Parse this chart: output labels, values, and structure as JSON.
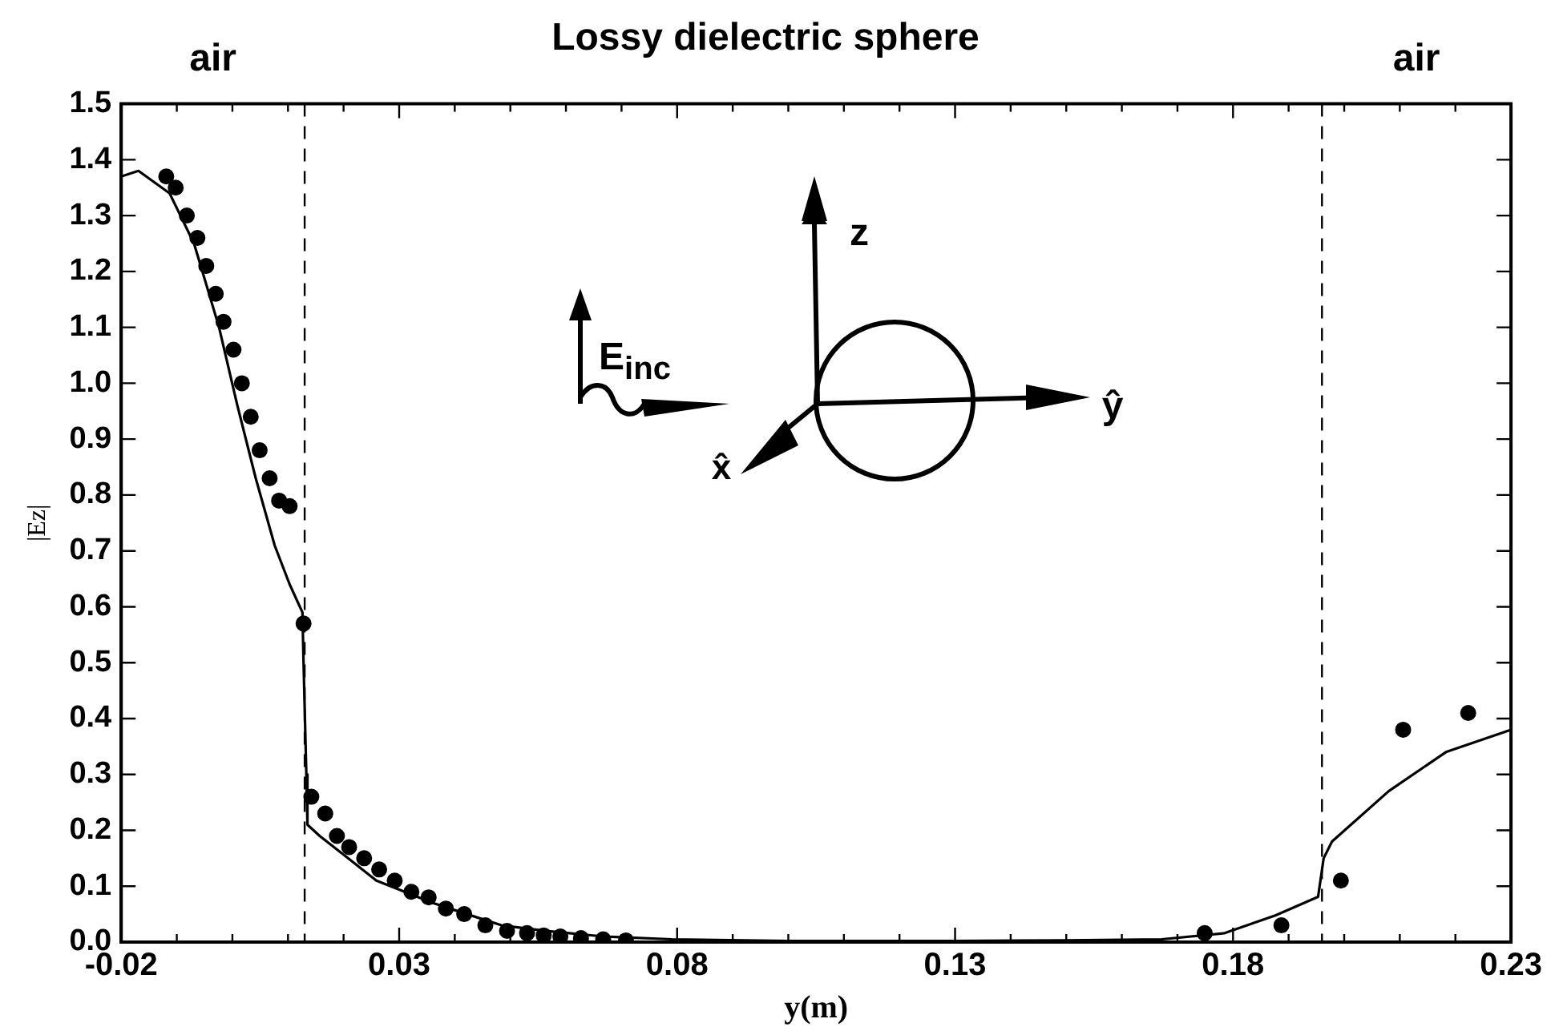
{
  "chart_data": {
    "type": "line",
    "title": "Lossy dielectric sphere",
    "xlabel": "y(m)",
    "ylabel": "|Ez|",
    "annotations": [
      "air",
      "air",
      "E$_{inc}$",
      "z",
      "ŷ",
      "x̂"
    ],
    "xlim": [
      -0.02,
      0.23
    ],
    "xticks": [
      -0.02,
      {
        "value": -0.01,
        "label": null
      },
      {
        "value": 0,
        "label": null
      },
      {
        "value": 0.01,
        "label": null
      },
      {
        "value": 0.02,
        "label": null
      },
      0.03,
      {
        "value": 0.04,
        "label": null
      },
      {
        "value": 0.05,
        "label": null
      },
      {
        "value": 0.06,
        "label": null
      },
      {
        "value": 0.07,
        "label": null
      },
      0.08,
      {
        "value": 0.09,
        "label": null
      },
      {
        "value": 0.1,
        "label": null
      },
      {
        "value": 0.11,
        "label": null
      },
      {
        "value": 0.12,
        "label": null
      },
      0.13,
      {
        "value": 0.14,
        "label": null
      },
      {
        "value": 0.15,
        "label": null
      },
      {
        "value": 0.16,
        "label": null
      },
      {
        "value": 0.17,
        "label": null
      },
      0.18,
      {
        "value": 0.19,
        "label": null
      },
      {
        "value": 0.2,
        "label": null
      },
      {
        "value": 0.21,
        "label": null
      },
      {
        "value": 0.22,
        "label": null
      },
      0.23
    ],
    "ylim": [
      0,
      1.5
    ],
    "yticks": [
      {
        "value": 0,
        "label": "0.0"
      },
      0.1,
      0.2,
      0.3,
      0.4,
      0.5,
      0.6,
      0.7,
      0.8,
      0.9,
      {
        "value": 1,
        "label": "1.0"
      },
      1.1,
      1.2,
      1.3,
      1.4,
      1.5
    ],
    "grid": false,
    "legend": false,
    "ref_lines": [
      {
        "axis": "x",
        "value": 0.013,
        "line_style": "dashed",
        "color": "#000000"
      },
      {
        "axis": "x",
        "value": 0.196,
        "line_style": "dashed",
        "color": "#000000"
      }
    ],
    "series": [
      {
        "color": "#000000",
        "marker": "none",
        "line_style": "solid",
        "x": [
          -0.02,
          -0.0169,
          -0.0113,
          -0.0069,
          -0.0024,
          0.0009,
          0.0042,
          0.0076,
          0.0103,
          0.0126,
          0.0128,
          0.0133,
          0.0135,
          0.0157,
          0.0208,
          0.0259,
          0.031,
          0.0361,
          0.0422,
          0.0484,
          0.0565,
          0.0667,
          0.079,
          0.1,
          0.13,
          0.15,
          0.1672,
          0.1785,
          0.1877,
          0.1953,
          0.1963,
          0.1978,
          0.208,
          0.2183,
          0.23
        ],
        "values": [
          1.37,
          1.38,
          1.34,
          1.25,
          1.1,
          0.96,
          0.83,
          0.71,
          0.64,
          0.59,
          0.5,
          0.3,
          0.21,
          0.19,
          0.15,
          0.11,
          0.09,
          0.07,
          0.05,
          0.03,
          0.02,
          0.01,
          0.005,
          0.002,
          0.002,
          0.003,
          0.005,
          0.016,
          0.048,
          0.081,
          0.15,
          0.18,
          0.27,
          0.34,
          0.38
        ]
      },
      {
        "type": "scatter",
        "color": "#000000",
        "marker": "circle",
        "x": [
          -0.0119,
          -0.0102,
          -0.0082,
          -0.0063,
          -0.0047,
          -0.003,
          -0.0016,
          0.0002,
          0.0017,
          0.0033,
          0.0049,
          0.0067,
          0.0084,
          0.0103,
          0.0128,
          0.0142,
          0.0167,
          0.0188,
          0.021,
          0.0237,
          0.0264,
          0.0292,
          0.0322,
          0.0353,
          0.0384,
          0.0417,
          0.0455,
          0.0494,
          0.053,
          0.056,
          0.059,
          0.0627,
          0.0667,
          0.0708,
          0.1749,
          0.1887,
          0.1994,
          0.2106,
          0.2223
        ],
        "values": [
          1.37,
          1.35,
          1.3,
          1.26,
          1.21,
          1.16,
          1.11,
          1.06,
          1.0,
          0.94,
          0.88,
          0.83,
          0.79,
          0.78,
          0.57,
          0.26,
          0.23,
          0.19,
          0.17,
          0.15,
          0.13,
          0.11,
          0.09,
          0.08,
          0.06,
          0.05,
          0.03,
          0.02,
          0.016,
          0.012,
          0.01,
          0.007,
          0.005,
          0.003,
          0.016,
          0.03,
          0.11,
          0.38,
          0.41
        ]
      }
    ]
  }
}
